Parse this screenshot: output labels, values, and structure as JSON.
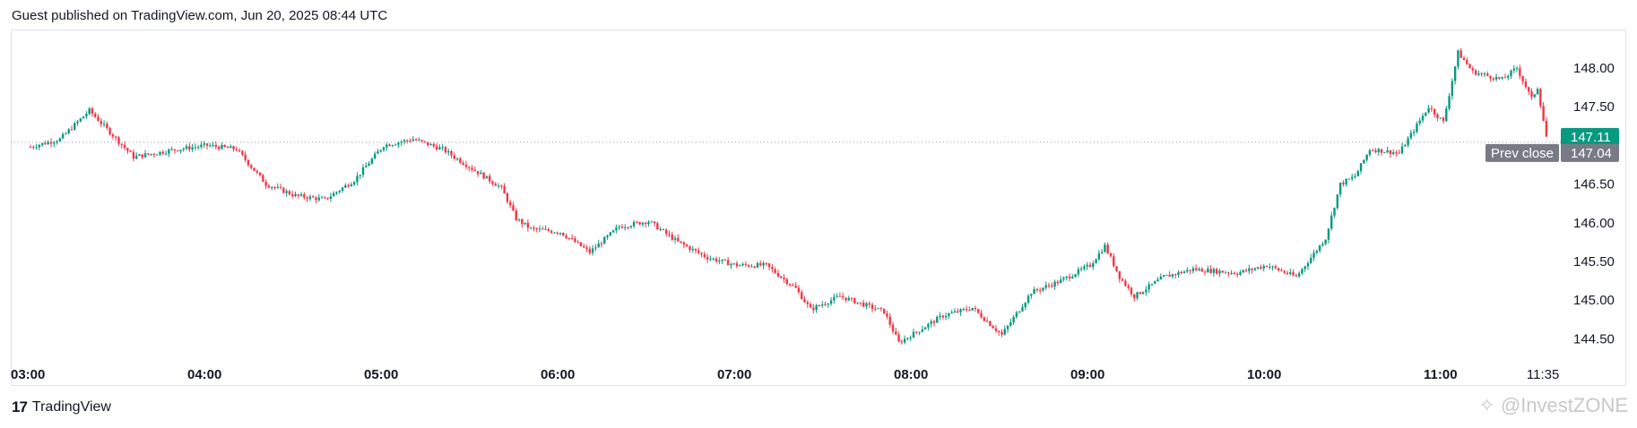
{
  "header": {
    "published": "Guest published on TradingView.com, Jun 20, 2025 08:44 UTC"
  },
  "footer": {
    "logo_mark": "17",
    "logo_text": "TradingView"
  },
  "watermark": {
    "icon": "watermark-icon",
    "text": "@InvestZONE"
  },
  "colors": {
    "up": "#089981",
    "down": "#f23645",
    "prev_close_tag": "#787b86",
    "grid": "#e0e3eb"
  },
  "chart_data": {
    "type": "candlestick",
    "ylim": [
      144.25,
      148.3
    ],
    "y_ticks": [
      "148.00",
      "147.50",
      "147.00",
      "146.50",
      "146.00",
      "145.50",
      "145.00",
      "144.50"
    ],
    "y_tick_values": [
      148.0,
      147.5,
      147.0,
      146.5,
      146.0,
      145.5,
      145.0,
      144.5
    ],
    "x_ticks": [
      "03:00",
      "04:00",
      "05:00",
      "06:00",
      "07:00",
      "08:00",
      "09:00",
      "10:00",
      "11:00",
      "11:35"
    ],
    "x_start": "03:00",
    "x_end": "11:35",
    "last_price": {
      "label": "147.11",
      "value": 147.11
    },
    "prev_close": {
      "label": "Prev close",
      "value_label": "147.04",
      "value": 147.04
    },
    "price_path": [
      [
        "03:00",
        146.98
      ],
      [
        "03:10",
        147.08
      ],
      [
        "03:20",
        147.45
      ],
      [
        "03:30",
        147.05
      ],
      [
        "03:35",
        146.85
      ],
      [
        "03:50",
        146.95
      ],
      [
        "04:00",
        147.0
      ],
      [
        "04:10",
        146.95
      ],
      [
        "04:20",
        146.5
      ],
      [
        "04:30",
        146.35
      ],
      [
        "04:40",
        146.3
      ],
      [
        "04:50",
        146.55
      ],
      [
        "05:00",
        147.0
      ],
      [
        "05:10",
        147.08
      ],
      [
        "05:20",
        146.95
      ],
      [
        "05:30",
        146.7
      ],
      [
        "05:40",
        146.45
      ],
      [
        "05:45",
        146.05
      ],
      [
        "05:50",
        145.92
      ],
      [
        "06:00",
        145.88
      ],
      [
        "06:10",
        145.62
      ],
      [
        "06:20",
        145.95
      ],
      [
        "06:30",
        146.02
      ],
      [
        "06:40",
        145.75
      ],
      [
        "06:50",
        145.55
      ],
      [
        "07:00",
        145.45
      ],
      [
        "07:10",
        145.45
      ],
      [
        "07:20",
        145.15
      ],
      [
        "07:25",
        144.88
      ],
      [
        "07:35",
        145.05
      ],
      [
        "07:50",
        144.85
      ],
      [
        "07:55",
        144.45
      ],
      [
        "08:10",
        144.8
      ],
      [
        "08:20",
        144.9
      ],
      [
        "08:30",
        144.55
      ],
      [
        "08:40",
        145.1
      ],
      [
        "08:50",
        145.25
      ],
      [
        "09:00",
        145.45
      ],
      [
        "09:05",
        145.7
      ],
      [
        "09:10",
        145.3
      ],
      [
        "09:15",
        145.05
      ],
      [
        "09:25",
        145.3
      ],
      [
        "09:35",
        145.4
      ],
      [
        "09:50",
        145.35
      ],
      [
        "10:00",
        145.45
      ],
      [
        "10:10",
        145.3
      ],
      [
        "10:20",
        145.8
      ],
      [
        "10:25",
        146.5
      ],
      [
        "10:30",
        146.6
      ],
      [
        "10:35",
        146.95
      ],
      [
        "10:45",
        146.9
      ],
      [
        "10:55",
        147.5
      ],
      [
        "11:00",
        147.3
      ],
      [
        "11:05",
        148.2
      ],
      [
        "11:10",
        147.95
      ],
      [
        "11:20",
        147.85
      ],
      [
        "11:25",
        148.0
      ],
      [
        "11:30",
        147.6
      ],
      [
        "11:32",
        147.75
      ],
      [
        "11:35",
        147.11
      ]
    ]
  }
}
